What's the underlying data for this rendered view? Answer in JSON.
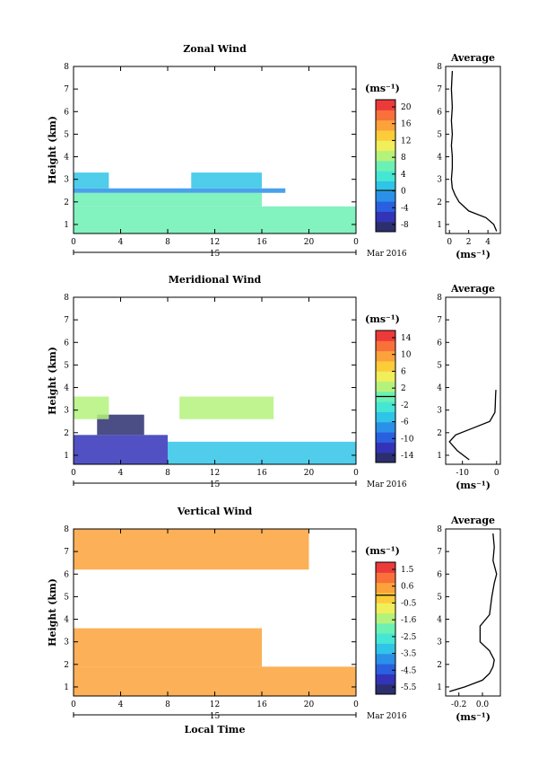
{
  "colors": {
    "jet": [
      "#2c2f6e",
      "#3333b8",
      "#2a5fe0",
      "#2a90e8",
      "#30c4e8",
      "#45e6d4",
      "#6cf0b4",
      "#b4f27c",
      "#f0ee5a",
      "#fccc3a",
      "#fca23a",
      "#f8703a",
      "#ec3a3a"
    ],
    "frame": "#000000",
    "background": "#ffffff"
  },
  "panels": [
    {
      "id": "zonal",
      "title": "Zonal Wind",
      "ylabel": "Height (km)",
      "xticks": [
        "0",
        "4",
        "8",
        "12",
        "16",
        "20",
        "0"
      ],
      "yticks": [
        "1",
        "2",
        "3",
        "4",
        "5",
        "6",
        "7",
        "8"
      ],
      "date_day": "15",
      "date_month": "Mar 2016",
      "unit": "(ms⁻¹)",
      "colorbar_ticks": [
        "20",
        "16",
        "12",
        "8",
        "4",
        "0",
        "-4",
        "-8"
      ],
      "colorbar_range": [
        -10,
        22
      ],
      "avg_title": "Average",
      "avg_unit": "(ms⁻¹)",
      "avg_xticks": [
        "0",
        "2",
        "4"
      ],
      "avg_yticks": [
        "1",
        "2",
        "3",
        "4",
        "5",
        "6",
        "7",
        "8"
      ]
    },
    {
      "id": "meridional",
      "title": "Meridional Wind",
      "ylabel": "Height (km)",
      "xticks": [
        "0",
        "4",
        "8",
        "12",
        "16",
        "20",
        "0"
      ],
      "yticks": [
        "1",
        "2",
        "3",
        "4",
        "5",
        "6",
        "7",
        "8"
      ],
      "date_day": "15",
      "date_month": "Mar 2016",
      "unit": "(ms⁻¹)",
      "colorbar_ticks": [
        "14",
        "10",
        "6",
        "2",
        "-2",
        "-6",
        "-10",
        "-14"
      ],
      "colorbar_range": [
        -16,
        16
      ],
      "avg_title": "Average",
      "avg_unit": "(ms⁻¹)",
      "avg_xticks": [
        "-10",
        "0"
      ],
      "avg_yticks": [
        "1",
        "2",
        "3",
        "4",
        "5",
        "6",
        "7",
        "8"
      ]
    },
    {
      "id": "vertical",
      "title": "Vertical Wind",
      "ylabel": "Height (km)",
      "xlabel": "Local Time",
      "xticks": [
        "0",
        "4",
        "8",
        "12",
        "16",
        "20",
        "0"
      ],
      "yticks": [
        "1",
        "2",
        "3",
        "4",
        "5",
        "6",
        "7",
        "8"
      ],
      "date_day": "15",
      "date_month": "Mar 2016",
      "unit": "(ms⁻¹)",
      "colorbar_ticks": [
        "1.5",
        "0.6",
        "-0.5",
        "-1.6",
        "-2.5",
        "-3.5",
        "-4.5",
        "-5.5"
      ],
      "colorbar_range": [
        -6,
        2
      ],
      "avg_title": "Average",
      "avg_unit": "(ms⁻¹)",
      "avg_xticks": [
        "-0.2",
        "0.0"
      ],
      "avg_yticks": [
        "1",
        "2",
        "3",
        "4",
        "5",
        "6",
        "7",
        "8"
      ]
    }
  ],
  "chart_data": [
    {
      "type": "heatmap",
      "title": "Zonal Wind",
      "xlabel": "",
      "ylabel": "Height (km)",
      "xlim": [
        0,
        24
      ],
      "ylim": [
        0.6,
        8
      ],
      "color_range": [
        -10,
        22
      ],
      "regions": [
        {
          "x": [
            0,
            24
          ],
          "y": [
            0.6,
            1.8
          ],
          "value": 6
        },
        {
          "x": [
            0,
            16
          ],
          "y": [
            1.8,
            2.4
          ],
          "value": 5
        },
        {
          "x": [
            0,
            18
          ],
          "y": [
            2.4,
            2.6
          ],
          "value": -2
        },
        {
          "x": [
            0,
            3
          ],
          "y": [
            2.6,
            3.3
          ],
          "value": 1
        },
        {
          "x": [
            10,
            16
          ],
          "y": [
            2.6,
            3.3
          ],
          "value": 1
        }
      ],
      "series": [
        {
          "name": "Average",
          "x": [
            4.9,
            4.6,
            3.8,
            2.0,
            1.0,
            0.6,
            0.3,
            0.2,
            0.3,
            0.3,
            0.2,
            0.3,
            0.2,
            0.3,
            0.2,
            0.3
          ],
          "y": [
            0.7,
            1.0,
            1.3,
            1.6,
            2.0,
            2.3,
            2.6,
            3.0,
            3.5,
            4.0,
            4.5,
            5.0,
            5.6,
            6.2,
            7.0,
            7.8
          ]
        }
      ]
    },
    {
      "type": "heatmap",
      "title": "Meridional Wind",
      "xlabel": "",
      "ylabel": "Height (km)",
      "xlim": [
        0,
        24
      ],
      "ylim": [
        0.6,
        8
      ],
      "color_range": [
        -16,
        16
      ],
      "regions": [
        {
          "x": [
            0,
            8
          ],
          "y": [
            0.6,
            1.9
          ],
          "value": -13
        },
        {
          "x": [
            2,
            6
          ],
          "y": [
            1.9,
            2.8
          ],
          "value": -14
        },
        {
          "x": [
            8,
            24
          ],
          "y": [
            0.6,
            1.6
          ],
          "value": -5
        },
        {
          "x": [
            0,
            3
          ],
          "y": [
            2.6,
            3.6
          ],
          "value": 2
        },
        {
          "x": [
            9,
            17
          ],
          "y": [
            2.6,
            3.6
          ],
          "value": 2
        }
      ],
      "series": [
        {
          "name": "Average",
          "x": [
            -8.0,
            -11.5,
            -13.8,
            -12.0,
            -7.0,
            -2.0,
            -0.5,
            -0.4,
            -0.3,
            -0.2
          ],
          "y": [
            0.8,
            1.2,
            1.6,
            1.9,
            2.2,
            2.5,
            2.9,
            3.2,
            3.6,
            3.9
          ]
        }
      ]
    },
    {
      "type": "heatmap",
      "title": "Vertical Wind",
      "xlabel": "Local Time",
      "ylabel": "Height (km)",
      "xlim": [
        0,
        24
      ],
      "ylim": [
        0.6,
        8
      ],
      "color_range": [
        -6,
        2
      ],
      "regions": [
        {
          "x": [
            0,
            24
          ],
          "y": [
            0.6,
            1.9
          ],
          "value": 0.3
        },
        {
          "x": [
            0,
            16
          ],
          "y": [
            1.9,
            3.6
          ],
          "value": 0.4
        },
        {
          "x": [
            0,
            20
          ],
          "y": [
            6.2,
            8
          ],
          "value": 0.4
        }
      ],
      "series": [
        {
          "name": "Average",
          "x": [
            -0.28,
            -0.15,
            0.0,
            0.06,
            0.09,
            0.1,
            0.06,
            -0.02,
            -0.02,
            0.06,
            0.08,
            0.1,
            0.12,
            0.09,
            0.1,
            0.09
          ],
          "y": [
            0.8,
            1.0,
            1.3,
            1.6,
            1.9,
            2.2,
            2.6,
            3.0,
            3.7,
            4.2,
            5.0,
            5.6,
            6.0,
            6.6,
            7.2,
            7.8
          ]
        }
      ]
    }
  ]
}
